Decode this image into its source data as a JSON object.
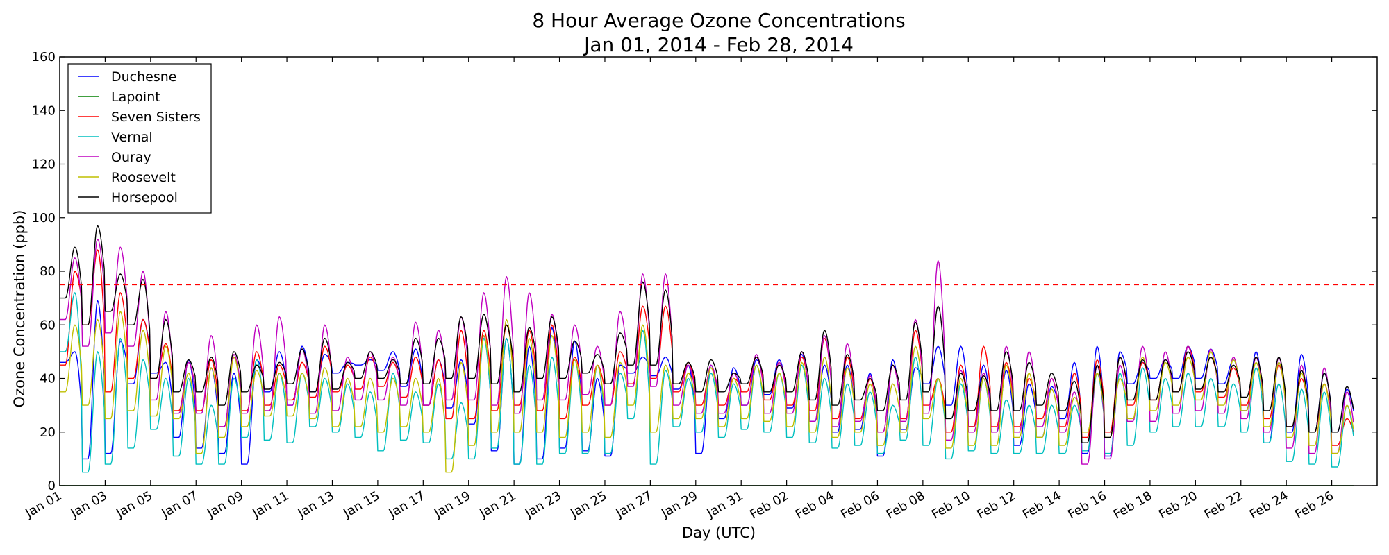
{
  "chart_data": {
    "type": "line",
    "title": "8 Hour Average Ozone Concentrations",
    "subtitle": "Jan 01, 2014 - Feb 28, 2014",
    "xlabel": "Day (UTC)",
    "ylabel": "Ozone Concentration (ppb)",
    "xlim": [
      "2014-01-01",
      "2014-02-28"
    ],
    "ylim": [
      0,
      160
    ],
    "yticks": [
      0,
      20,
      40,
      60,
      80,
      100,
      120,
      140,
      160
    ],
    "xticks": [
      {
        "date": "2014-01-01",
        "label": "Jan 01"
      },
      {
        "date": "2014-01-03",
        "label": "Jan 03"
      },
      {
        "date": "2014-01-05",
        "label": "Jan 05"
      },
      {
        "date": "2014-01-07",
        "label": "Jan 07"
      },
      {
        "date": "2014-01-09",
        "label": "Jan 09"
      },
      {
        "date": "2014-01-11",
        "label": "Jan 11"
      },
      {
        "date": "2014-01-13",
        "label": "Jan 13"
      },
      {
        "date": "2014-01-15",
        "label": "Jan 15"
      },
      {
        "date": "2014-01-17",
        "label": "Jan 17"
      },
      {
        "date": "2014-01-19",
        "label": "Jan 19"
      },
      {
        "date": "2014-01-21",
        "label": "Jan 21"
      },
      {
        "date": "2014-01-23",
        "label": "Jan 23"
      },
      {
        "date": "2014-01-25",
        "label": "Jan 25"
      },
      {
        "date": "2014-01-27",
        "label": "Jan 27"
      },
      {
        "date": "2014-01-29",
        "label": "Jan 29"
      },
      {
        "date": "2014-01-31",
        "label": "Jan 31"
      },
      {
        "date": "2014-02-02",
        "label": "Feb 02"
      },
      {
        "date": "2014-02-04",
        "label": "Feb 04"
      },
      {
        "date": "2014-02-06",
        "label": "Feb 06"
      },
      {
        "date": "2014-02-08",
        "label": "Feb 08"
      },
      {
        "date": "2014-02-10",
        "label": "Feb 10"
      },
      {
        "date": "2014-02-12",
        "label": "Feb 12"
      },
      {
        "date": "2014-02-14",
        "label": "Feb 14"
      },
      {
        "date": "2014-02-16",
        "label": "Feb 16"
      },
      {
        "date": "2014-02-18",
        "label": "Feb 18"
      },
      {
        "date": "2014-02-20",
        "label": "Feb 20"
      },
      {
        "date": "2014-02-22",
        "label": "Feb 22"
      },
      {
        "date": "2014-02-24",
        "label": "Feb 24"
      },
      {
        "date": "2014-02-26",
        "label": "Feb 26"
      }
    ],
    "reference_line": {
      "y": 75,
      "color": "#ff0000",
      "style": "dashed"
    },
    "grid": false,
    "legend_position": "top-left",
    "series": [
      {
        "name": "Duchesne",
        "color": "#0000ff",
        "peaks": [
          50,
          69,
          54,
          62,
          46,
          47,
          44,
          42,
          47,
          50,
          52,
          49,
          46,
          47,
          50,
          51,
          47,
          47,
          56,
          55,
          52,
          59,
          54,
          40,
          45,
          48,
          48,
          45,
          45,
          44,
          47,
          47,
          49,
          45,
          45,
          42,
          47,
          44,
          52,
          52,
          45,
          43,
          38,
          37,
          46,
          52,
          50,
          46,
          47,
          52,
          51,
          47,
          50,
          46,
          49,
          42,
          36
        ],
        "troughs": [
          46,
          10,
          12,
          38,
          42,
          18,
          14,
          12,
          8,
          35,
          30,
          35,
          42,
          45,
          43,
          37,
          30,
          29,
          23,
          13,
          8,
          10,
          14,
          13,
          11,
          42,
          41,
          36,
          12,
          25,
          30,
          34,
          29,
          24,
          20,
          21,
          11,
          21,
          38,
          30,
          22,
          20,
          15,
          18,
          25,
          12,
          11,
          38,
          40,
          40,
          40,
          38,
          28,
          16,
          20,
          20,
          20
        ]
      },
      {
        "name": "Lapoint",
        "color": "#008000",
        "peaks": [
          0,
          0,
          0,
          0,
          0,
          0,
          0,
          0,
          0,
          0,
          0,
          0,
          0,
          0,
          0,
          0,
          0,
          0,
          0,
          0,
          0,
          0,
          0,
          0,
          0,
          0,
          0,
          0,
          0,
          0,
          0,
          0,
          0,
          0,
          0,
          0,
          0,
          0,
          0,
          0,
          0,
          0,
          0,
          0,
          0,
          0,
          0,
          0,
          0,
          0,
          0,
          0,
          0,
          0,
          0,
          0,
          0
        ],
        "troughs": [
          0,
          0,
          0,
          0,
          0,
          0,
          0,
          0,
          0,
          0,
          0,
          0,
          0,
          0,
          0,
          0,
          0,
          0,
          0,
          0,
          0,
          0,
          0,
          0,
          0,
          0,
          0,
          0,
          0,
          0,
          0,
          0,
          0,
          0,
          0,
          0,
          0,
          0,
          0,
          0,
          0,
          0,
          0,
          0,
          0,
          0,
          0,
          0,
          0,
          0,
          0,
          0,
          0,
          0,
          0,
          0,
          0
        ]
      },
      {
        "name": "Seven Sisters",
        "color": "#ff0000",
        "peaks": [
          80,
          88,
          72,
          62,
          53,
          46,
          47,
          48,
          50,
          45,
          46,
          52,
          45,
          48,
          46,
          48,
          47,
          58,
          58,
          60,
          58,
          60,
          48,
          45,
          50,
          67,
          67,
          46,
          44,
          40,
          48,
          46,
          48,
          55,
          48,
          40,
          45,
          58,
          40,
          45,
          52,
          46,
          40,
          40,
          42,
          47,
          48,
          46,
          47,
          52,
          48,
          44,
          48,
          45,
          40,
          38,
          25
        ],
        "troughs": [
          45,
          60,
          35,
          40,
          40,
          28,
          28,
          22,
          28,
          30,
          32,
          33,
          35,
          36,
          37,
          33,
          30,
          25,
          25,
          28,
          30,
          28,
          25,
          30,
          30,
          38,
          40,
          35,
          30,
          30,
          35,
          32,
          30,
          28,
          25,
          25,
          20,
          25,
          30,
          20,
          22,
          22,
          22,
          25,
          22,
          18,
          20,
          30,
          32,
          35,
          35,
          33,
          30,
          25,
          22,
          20,
          15
        ]
      },
      {
        "name": "Vernal",
        "color": "#00bfbf",
        "peaks": [
          72,
          50,
          55,
          47,
          40,
          40,
          30,
          40,
          47,
          42,
          42,
          40,
          38,
          35,
          42,
          35,
          38,
          31,
          55,
          55,
          45,
          48,
          47,
          45,
          42,
          58,
          43,
          40,
          42,
          38,
          45,
          42,
          45,
          40,
          38,
          35,
          30,
          48,
          40,
          38,
          40,
          32,
          30,
          30,
          30,
          42,
          42,
          44,
          40,
          42,
          40,
          38,
          44,
          38,
          36,
          35,
          30
        ],
        "troughs": [
          50,
          5,
          8,
          14,
          21,
          11,
          8,
          8,
          18,
          17,
          16,
          22,
          20,
          18,
          13,
          17,
          16,
          10,
          10,
          14,
          8,
          8,
          12,
          12,
          12,
          25,
          8,
          22,
          20,
          18,
          21,
          20,
          18,
          16,
          14,
          15,
          12,
          17,
          15,
          10,
          13,
          12,
          12,
          12,
          12,
          13,
          12,
          15,
          20,
          22,
          22,
          22,
          20,
          16,
          9,
          8,
          7
        ]
      },
      {
        "name": "Ouray",
        "color": "#bf00bf",
        "peaks": [
          85,
          92,
          89,
          80,
          65,
          46,
          56,
          49,
          60,
          63,
          51,
          60,
          48,
          50,
          48,
          61,
          58,
          63,
          72,
          78,
          72,
          64,
          60,
          52,
          65,
          79,
          79,
          45,
          45,
          42,
          49,
          46,
          50,
          56,
          53,
          41,
          45,
          62,
          84,
          43,
          42,
          52,
          50,
          40,
          35,
          45,
          45,
          52,
          50,
          52,
          51,
          48,
          48,
          48,
          45,
          44,
          35
        ]
      },
      {
        "name": "Roosevelt",
        "color": "#bfbf00",
        "peaks": [
          60,
          62,
          65,
          58,
          52,
          42,
          44,
          48,
          43,
          42,
          42,
          44,
          40,
          40,
          40,
          40,
          40,
          46,
          56,
          62,
          55,
          56,
          47,
          45,
          46,
          60,
          45,
          42,
          44,
          40,
          45,
          42,
          46,
          48,
          44,
          38,
          38,
          52,
          40,
          40,
          40,
          45,
          42,
          36,
          33,
          42,
          40,
          48,
          46,
          48,
          50,
          47,
          46,
          46,
          42,
          38,
          30
        ],
        "troughs": [
          35,
          30,
          25,
          28,
          26,
          25,
          12,
          18,
          22,
          26,
          26,
          25,
          22,
          22,
          20,
          22,
          20,
          5,
          15,
          20,
          20,
          20,
          18,
          20,
          18,
          30,
          20,
          25,
          25,
          22,
          25,
          24,
          22,
          20,
          18,
          20,
          15,
          20,
          25,
          14,
          15,
          15,
          18,
          18,
          15,
          20,
          18,
          25,
          28,
          30,
          32,
          30,
          28,
          22,
          18,
          15,
          12
        ]
      },
      {
        "name": "Horsepool",
        "color": "#000000",
        "peaks": [
          89,
          97,
          79,
          77,
          62,
          47,
          48,
          50,
          45,
          46,
          51,
          55,
          46,
          50,
          47,
          55,
          55,
          63,
          64,
          60,
          59,
          63,
          54,
          49,
          57,
          76,
          73,
          46,
          47,
          42,
          48,
          45,
          50,
          58,
          49,
          40,
          45,
          61,
          67,
          42,
          41,
          50,
          46,
          42,
          39,
          45,
          48,
          47,
          47,
          50,
          48,
          45,
          48,
          48,
          43,
          42,
          37
        ],
        "troughs": [
          70,
          60,
          65,
          60,
          40,
          35,
          35,
          30,
          35,
          36,
          38,
          35,
          36,
          40,
          40,
          38,
          38,
          40,
          40,
          38,
          35,
          40,
          40,
          42,
          38,
          45,
          45,
          38,
          35,
          35,
          38,
          35,
          35,
          32,
          30,
          32,
          28,
          32,
          35,
          25,
          28,
          28,
          28,
          30,
          28,
          16,
          18,
          32,
          32,
          35,
          36,
          35,
          33,
          28,
          22,
          20,
          20
        ]
      }
    ]
  }
}
